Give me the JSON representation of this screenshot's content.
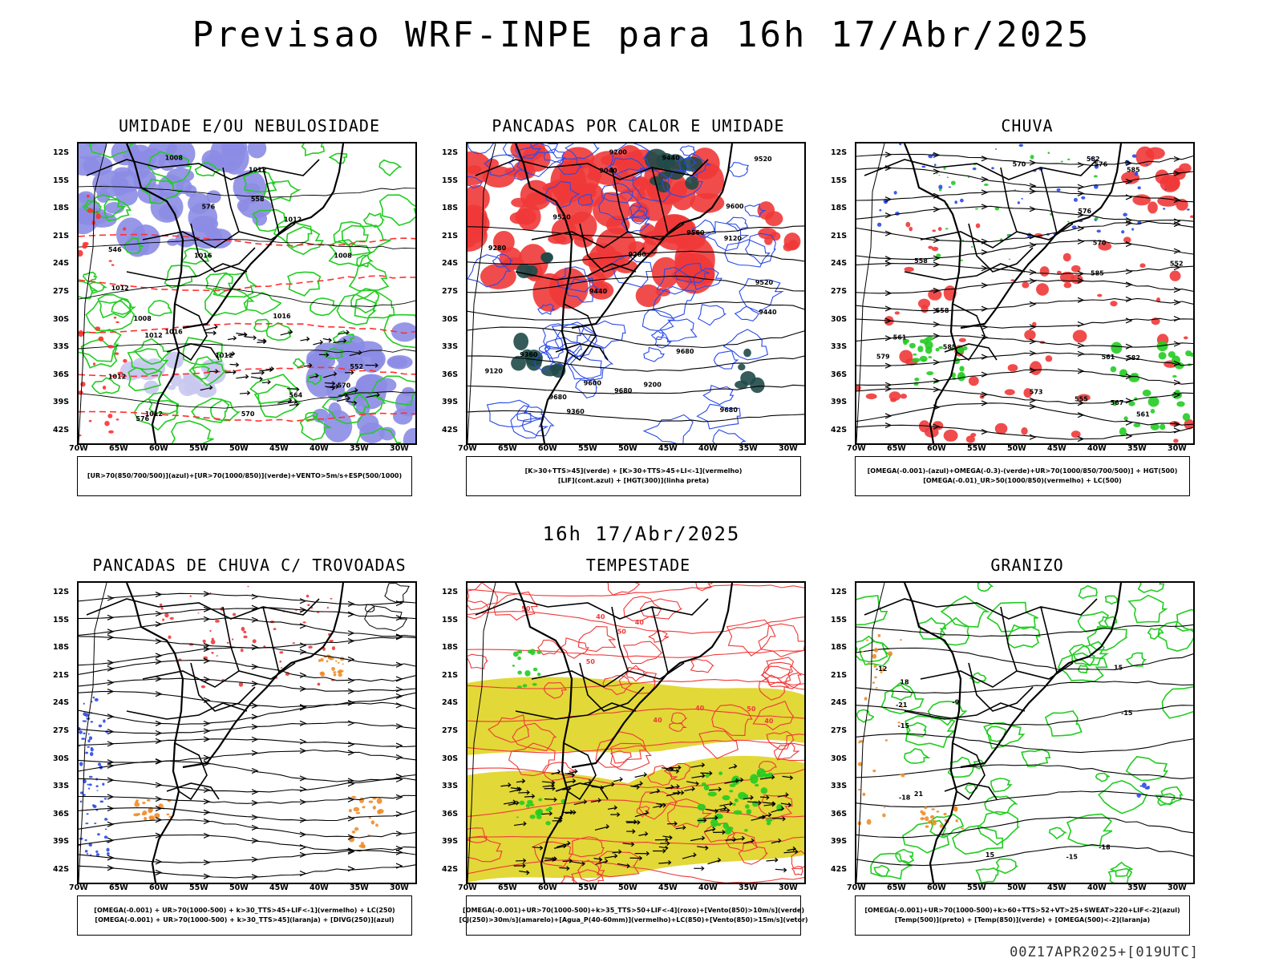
{
  "page": {
    "title": "Previsao WRF-INPE  para 16h 17/Abr/2025",
    "mid_title": "16h 17/Abr/2025",
    "footer": "00Z17APR2025+[019UTC]"
  },
  "axes": {
    "lat_labels": [
      "12S",
      "15S",
      "18S",
      "21S",
      "24S",
      "27S",
      "30S",
      "33S",
      "36S",
      "39S",
      "42S"
    ],
    "lon_labels": [
      "70W",
      "65W",
      "60W",
      "55W",
      "50W",
      "45W",
      "40W",
      "35W",
      "30W"
    ]
  },
  "panels": [
    {
      "title": "UMIDADE E/OU NEBULOSIDADE",
      "legend": [
        "[UR>70(850/700/500)](azul)+[UR>70(1000/850)](verde)+VENTO>5m/s+ESP(500/1000)"
      ],
      "contour_labels": [
        "1008",
        "1008",
        "1012",
        "1012",
        "1012",
        "1012",
        "1012",
        "1016",
        "1016",
        "1012",
        "1012",
        "1008",
        "1016",
        "576",
        "570",
        "570",
        "564",
        "558",
        "552",
        "546",
        "576"
      ],
      "colors": {
        "blue": "#8c8ce6",
        "green": "#22cc22",
        "red": "#ff3030"
      }
    },
    {
      "title": "PANCADAS POR CALOR E UMIDADE",
      "legend": [
        "[K>30+TTS>45](verde) + [K>30+TTS>45+LI<-1](vermelho)",
        "[LIF](cont.azul) + [HGT(300)](linha preta)"
      ],
      "contour_labels": [
        "9680",
        "9680",
        "9560",
        "9600",
        "9520",
        "9440",
        "9520",
        "9440",
        "9360",
        "9280",
        "9200",
        "9120",
        "9040",
        "9600",
        "9520",
        "9440",
        "9360",
        "9280",
        "9200",
        "9120",
        "9680",
        "9680"
      ],
      "colors": {
        "red": "#f03838",
        "dark": "#1f4a48",
        "blue": "#2a4ae8"
      }
    },
    {
      "title": "CHUVA",
      "legend": [
        "[OMEGA(-0.001)-(azul)+OMEGA(-0.3)-(verde)+UR>70(1000/850/700/500)] + HGT(500)",
        "[OMEGA(-0.01)_UR>50(1000/850)(vermelho) + LC(500)"
      ],
      "contour_labels": [
        "585",
        "585",
        "582",
        "585",
        "582",
        "579",
        "576",
        "576",
        "573",
        "570",
        "567",
        "561",
        "570",
        "561",
        "558",
        "555",
        "552",
        "561",
        "558"
      ],
      "colors": {
        "red": "#f03838",
        "green": "#22cc22",
        "blue": "#2a4ae8"
      }
    },
    {
      "title": "PANCADAS DE CHUVA C/ TROVOADAS",
      "legend": [
        "[OMEGA(-0.001) + UR>70(1000-500) + k>30_TTS>45+LIF<-1](vermelho) + LC(250)",
        "[OMEGA(-0.001) + UR>70(1000-500) + k>30_TTS>45](laranja) + [DIVG(250)](azul)"
      ],
      "contour_labels": [],
      "colors": {
        "red": "#f03838",
        "orange": "#f08c28",
        "blue": "#2a4ae8"
      }
    },
    {
      "title": "TEMPESTADE",
      "legend": [
        "[OMEGA(-0.001)+UR>70(1000-500)+k>35_TTS>50+LIF<-4](roxo)+[Vento(850)>10m/s](verde)",
        "[CJ(250)>30m/s](amarelo)+[Agua_P(40-60mm)](vermelho)+LC(850)+[Vento(850)>15m/s](vetor)"
      ],
      "contour_labels": [
        "50",
        "50",
        "50",
        "40",
        "40",
        "40",
        "40",
        "50",
        "40"
      ],
      "colors": {
        "yellow": "#e2d838",
        "red": "#f03838",
        "green": "#22cc22"
      }
    },
    {
      "title": "GRANIZO",
      "legend": [
        "[OMEGA(-0.001)+UR>70(1000-500)+k>60+TTS>52+VT>25+SWEAT>220+LIF<-2](azul)",
        "[Temp(500)](preto) + [Temp(850)](verde) + [OMEGA(500)<-2](laranja)"
      ],
      "contour_labels": [
        "-9",
        "-12",
        "15",
        "15",
        "-15",
        "-18",
        "-18",
        "-21",
        "-15",
        "18",
        "21",
        "-15"
      ],
      "colors": {
        "green": "#22cc22",
        "orange": "#f08c28",
        "blue": "#2a4ae8"
      }
    }
  ]
}
